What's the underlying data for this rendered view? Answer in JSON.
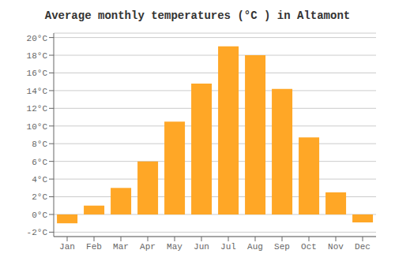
{
  "chart_data": {
    "type": "bar",
    "title": "Average monthly temperatures (°C ) in Altamont",
    "categories": [
      "Jan",
      "Feb",
      "Mar",
      "Apr",
      "May",
      "Jun",
      "Jul",
      "Aug",
      "Sep",
      "Oct",
      "Nov",
      "Dec"
    ],
    "values": [
      -1.0,
      1.0,
      3.0,
      6.0,
      10.5,
      14.8,
      19.0,
      18.0,
      14.2,
      8.7,
      2.5,
      -0.9
    ],
    "color": "#FFA726",
    "ylim": [
      -2.5,
      20.5
    ],
    "yticks": [
      {
        "value": -2,
        "label": "-2°C"
      },
      {
        "value": 0,
        "label": "0°C"
      },
      {
        "value": 2,
        "label": "2°C"
      },
      {
        "value": 4,
        "label": "4°C"
      },
      {
        "value": 6,
        "label": "6°C"
      },
      {
        "value": 8,
        "label": "8°C"
      },
      {
        "value": 10,
        "label": "10°C"
      },
      {
        "value": 12,
        "label": "12°C"
      },
      {
        "value": 14,
        "label": "14°C"
      },
      {
        "value": 16,
        "label": "16°C"
      },
      {
        "value": 18,
        "label": "18°C"
      },
      {
        "value": 20,
        "label": "20°C"
      }
    ],
    "grid": true
  }
}
